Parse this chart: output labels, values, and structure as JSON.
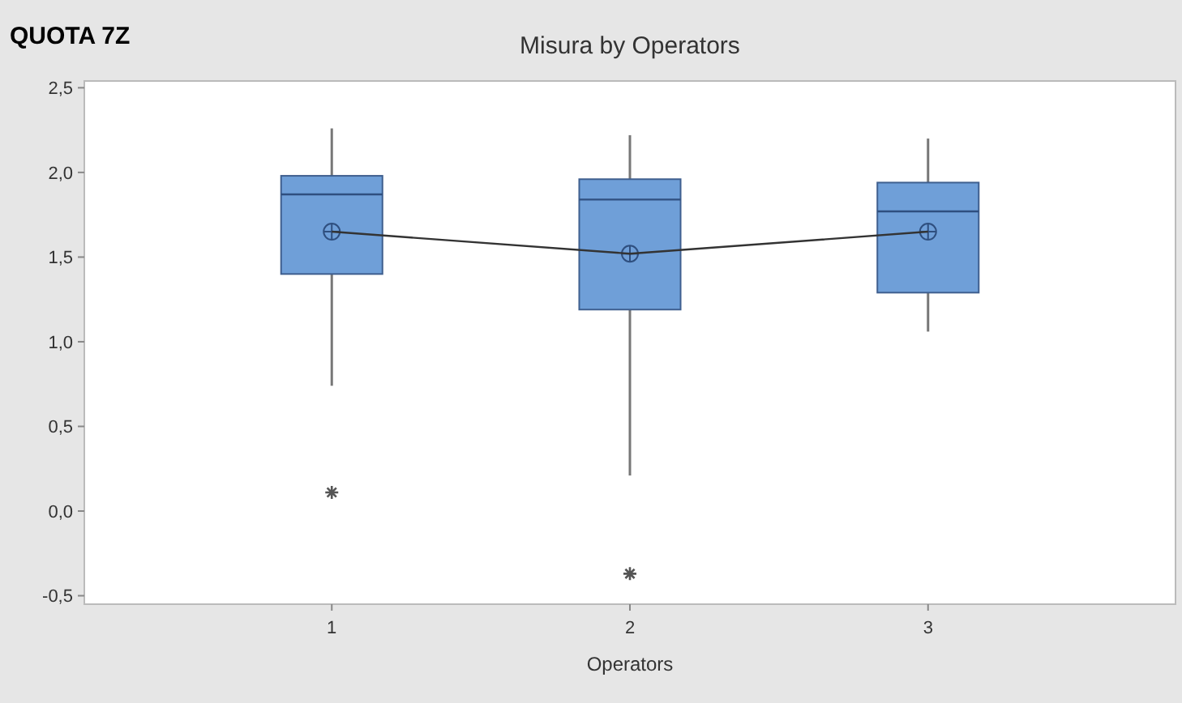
{
  "chart_data": {
    "type": "box",
    "title": "Misura by Operators",
    "xlabel": "Operators",
    "annotations": [
      "QUOTA 7Z"
    ],
    "categories": [
      "1",
      "2",
      "3"
    ],
    "ylim": [
      -0.55,
      2.54
    ],
    "yticks": [
      {
        "value": -0.5,
        "label": "-0,5"
      },
      {
        "value": 0,
        "label": "0,0"
      },
      {
        "value": 0.5,
        "label": "0,5"
      },
      {
        "value": 1,
        "label": "1,0"
      },
      {
        "value": 1.5,
        "label": "1,5"
      },
      {
        "value": 2,
        "label": "2,0"
      },
      {
        "value": 2.5,
        "label": "2,5"
      }
    ],
    "grid": false,
    "series": [
      {
        "type": "box",
        "color": "#6f9fd8",
        "boxes": [
          {
            "low": 0.74,
            "q1": 1.4,
            "median": 1.87,
            "q3": 1.98,
            "high": 2.26,
            "mean": 1.65,
            "outliers": [
              0.11
            ]
          },
          {
            "low": 0.21,
            "q1": 1.19,
            "median": 1.84,
            "q3": 1.96,
            "high": 2.22,
            "mean": 1.52,
            "outliers": [
              -0.37
            ]
          },
          {
            "low": 1.06,
            "q1": 1.29,
            "median": 1.77,
            "q3": 1.94,
            "high": 2.2,
            "mean": 1.65
          }
        ]
      },
      {
        "type": "line",
        "color": "#333333",
        "marker": "none",
        "line_style": "solid",
        "values": [
          1.65,
          1.52,
          1.65
        ]
      }
    ]
  }
}
